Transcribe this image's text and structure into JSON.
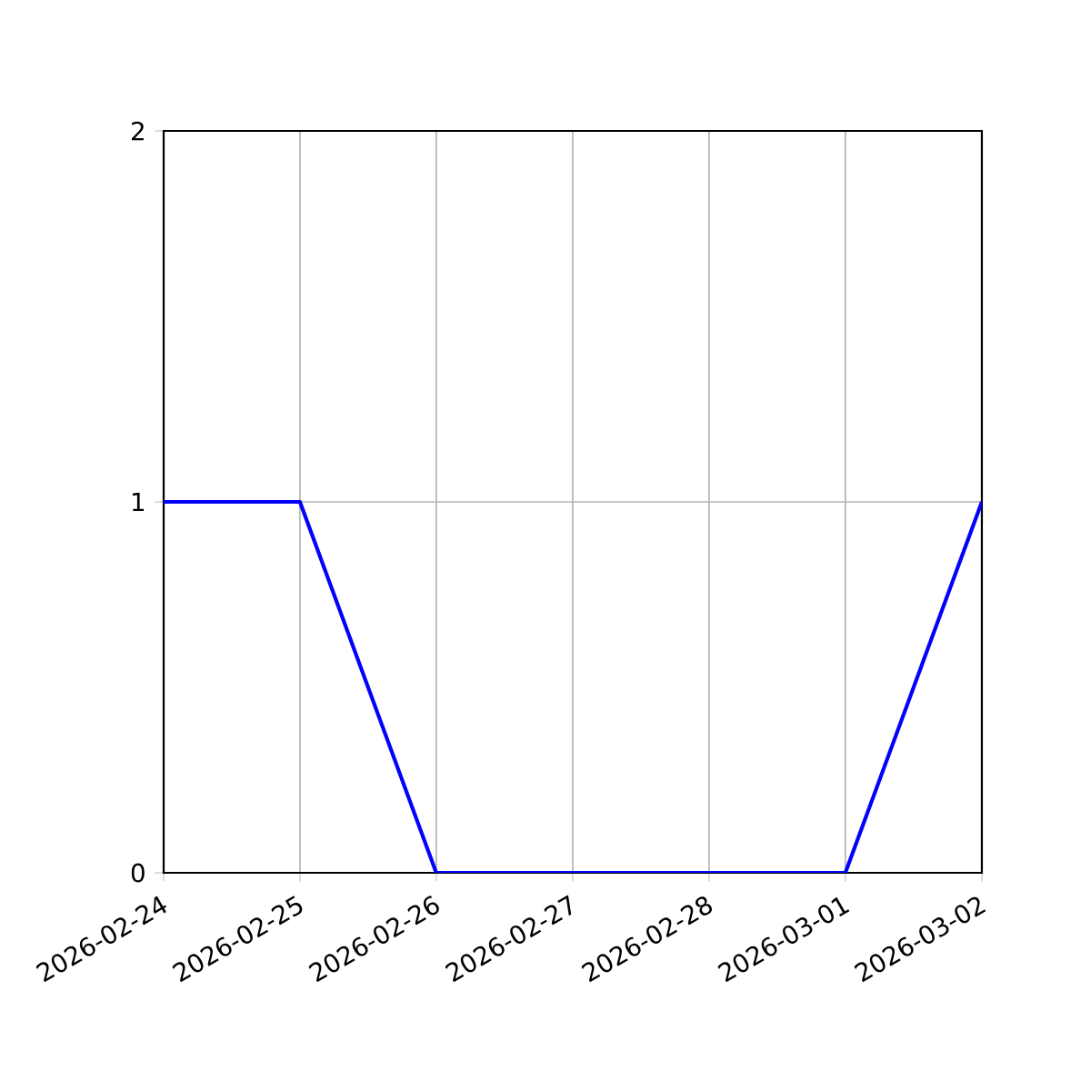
{
  "chart_data": {
    "type": "line",
    "x": [
      "2026-02-24",
      "2026-02-25",
      "2026-02-26",
      "2026-02-27",
      "2026-02-28",
      "2026-03-01",
      "2026-03-02"
    ],
    "values": [
      1,
      1,
      0,
      0,
      0,
      0,
      1
    ],
    "color": "#0000ff",
    "xlim": [
      "2026-02-24",
      "2026-03-02"
    ],
    "xticks": [
      "2026-02-24",
      "2026-02-25",
      "2026-02-26",
      "2026-02-27",
      "2026-02-28",
      "2026-03-01",
      "2026-03-02"
    ],
    "ylim": [
      0,
      2
    ],
    "yticks": [
      0,
      1,
      2
    ],
    "grid": true
  }
}
